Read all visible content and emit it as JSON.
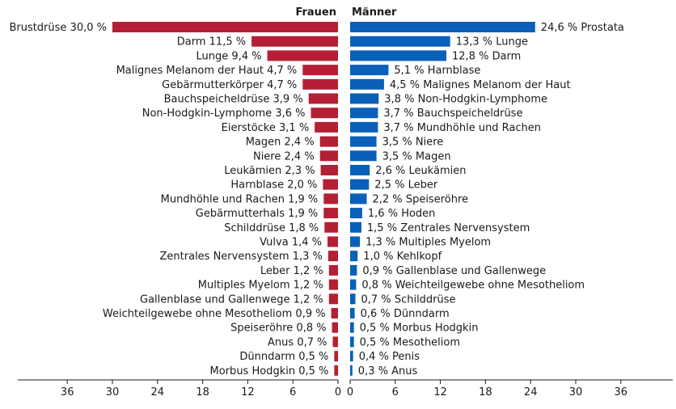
{
  "chart_data": {
    "type": "bar",
    "orientation": "horizontal-butterfly",
    "grid": false,
    "xlim": [
      0,
      36
    ],
    "colors": {
      "frauen": "#b41f35",
      "maenner": "#0a60b8"
    },
    "series": [
      {
        "name": "Frauen",
        "side": "left",
        "items": [
          {
            "label": "Brustdrüse",
            "value": 30.0,
            "value_text": "30,0 %"
          },
          {
            "label": "Darm",
            "value": 11.5,
            "value_text": "11,5 %"
          },
          {
            "label": "Lunge",
            "value": 9.4,
            "value_text": "9,4 %"
          },
          {
            "label": "Malignes Melanom der Haut",
            "value": 4.7,
            "value_text": "4,7 %"
          },
          {
            "label": "Gebärmutterkörper",
            "value": 4.7,
            "value_text": "4,7 %"
          },
          {
            "label": "Bauchspeicheldrüse",
            "value": 3.9,
            "value_text": "3,9 %"
          },
          {
            "label": "Non-Hodgkin-Lymphome",
            "value": 3.6,
            "value_text": "3,6 %"
          },
          {
            "label": "Eierstöcke",
            "value": 3.1,
            "value_text": "3,1 %"
          },
          {
            "label": "Magen",
            "value": 2.4,
            "value_text": "2,4 %"
          },
          {
            "label": "Niere",
            "value": 2.4,
            "value_text": "2,4 %"
          },
          {
            "label": "Leukämien",
            "value": 2.3,
            "value_text": "2,3 %"
          },
          {
            "label": "Harnblase",
            "value": 2.0,
            "value_text": "2,0 %"
          },
          {
            "label": "Mundhöhle und Rachen",
            "value": 1.9,
            "value_text": "1,9 %"
          },
          {
            "label": "Gebärmutterhals",
            "value": 1.9,
            "value_text": "1,9 %"
          },
          {
            "label": "Schilddrüse",
            "value": 1.8,
            "value_text": "1,8 %"
          },
          {
            "label": "Vulva",
            "value": 1.4,
            "value_text": "1,4 %"
          },
          {
            "label": "Zentrales Nervensystem",
            "value": 1.3,
            "value_text": "1,3 %"
          },
          {
            "label": "Leber",
            "value": 1.2,
            "value_text": "1,2 %"
          },
          {
            "label": "Multiples Myelom",
            "value": 1.2,
            "value_text": "1,2 %"
          },
          {
            "label": "Gallenblase und Gallenwege",
            "value": 1.2,
            "value_text": "1,2 %"
          },
          {
            "label": "Weichteilgewebe ohne Mesotheliom",
            "value": 0.9,
            "value_text": "0,9 %"
          },
          {
            "label": "Speiseröhre",
            "value": 0.8,
            "value_text": "0,8 %"
          },
          {
            "label": "Anus",
            "value": 0.7,
            "value_text": "0,7 %"
          },
          {
            "label": "Dünndarm",
            "value": 0.5,
            "value_text": "0,5 %"
          },
          {
            "label": "Morbus Hodgkin",
            "value": 0.5,
            "value_text": "0,5 %"
          }
        ]
      },
      {
        "name": "Männer",
        "side": "right",
        "items": [
          {
            "label": "Prostata",
            "value": 24.6,
            "value_text": "24,6 %"
          },
          {
            "label": "Lunge",
            "value": 13.3,
            "value_text": "13,3 %"
          },
          {
            "label": "Darm",
            "value": 12.8,
            "value_text": "12,8 %"
          },
          {
            "label": "Harnblase",
            "value": 5.1,
            "value_text": "5,1 %"
          },
          {
            "label": "Malignes Melanom der Haut",
            "value": 4.5,
            "value_text": "4,5 %"
          },
          {
            "label": "Non-Hodgkin-Lymphome",
            "value": 3.8,
            "value_text": "3,8 %"
          },
          {
            "label": "Bauchspeicheldrüse",
            "value": 3.7,
            "value_text": "3,7 %"
          },
          {
            "label": "Mundhöhle und Rachen",
            "value": 3.7,
            "value_text": "3,7 %"
          },
          {
            "label": "Niere",
            "value": 3.5,
            "value_text": "3,5 %"
          },
          {
            "label": "Magen",
            "value": 3.5,
            "value_text": "3,5 %"
          },
          {
            "label": "Leukämien",
            "value": 2.6,
            "value_text": "2,6 %"
          },
          {
            "label": "Leber",
            "value": 2.5,
            "value_text": "2,5 %"
          },
          {
            "label": "Speiseröhre",
            "value": 2.2,
            "value_text": "2,2 %"
          },
          {
            "label": "Hoden",
            "value": 1.6,
            "value_text": "1,6 %"
          },
          {
            "label": "Zentrales Nervensystem",
            "value": 1.5,
            "value_text": "1,5 %"
          },
          {
            "label": "Multiples Myelom",
            "value": 1.3,
            "value_text": "1,3 %"
          },
          {
            "label": "Kehlkopf",
            "value": 1.0,
            "value_text": "1,0 %"
          },
          {
            "label": "Gallenblase und Gallenwege",
            "value": 0.9,
            "value_text": "0,9 %"
          },
          {
            "label": "Weichteilgewebe ohne Mesotheliom",
            "value": 0.8,
            "value_text": "0,8 %"
          },
          {
            "label": "Schilddrüse",
            "value": 0.7,
            "value_text": "0,7 %"
          },
          {
            "label": "Dünndarm",
            "value": 0.6,
            "value_text": "0,6 %"
          },
          {
            "label": "Morbus Hodgkin",
            "value": 0.5,
            "value_text": "0,5 %"
          },
          {
            "label": "Mesotheliom",
            "value": 0.5,
            "value_text": "0,5 %"
          },
          {
            "label": "Penis",
            "value": 0.4,
            "value_text": "0,4 %"
          },
          {
            "label": "Anus",
            "value": 0.3,
            "value_text": "0,3 %"
          }
        ]
      }
    ],
    "ticks": {
      "left": [
        36,
        30,
        24,
        18,
        12,
        6,
        0
      ],
      "right": [
        0,
        6,
        12,
        18,
        24,
        30,
        36
      ]
    }
  }
}
